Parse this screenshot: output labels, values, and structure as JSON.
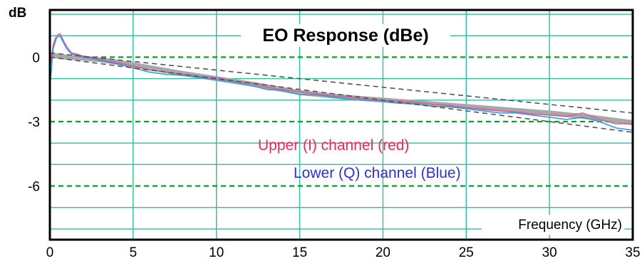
{
  "chart_data": {
    "type": "line",
    "title": "EO Response (dBe)",
    "ylabel": "dB",
    "xlabel": "Frequency (GHz)",
    "xlim": [
      0,
      35
    ],
    "ylim": [
      -8.5,
      2.2
    ],
    "x_ticks": [
      0,
      5,
      10,
      15,
      20,
      25,
      30,
      35
    ],
    "y_ticks": [
      0,
      -3,
      -6
    ],
    "y_tick_labels": [
      "0",
      "-3",
      "-6"
    ],
    "grid": true,
    "series": [
      {
        "name": "Upper (I)  channel (red)",
        "color": "#e05a9a",
        "x": [
          0,
          0.2,
          0.4,
          0.6,
          0.8,
          1.0,
          1.3,
          1.6,
          2.0,
          2.5,
          3,
          4,
          5,
          6,
          7,
          8,
          9,
          10,
          11,
          12,
          13,
          14,
          15,
          16,
          17,
          18,
          19,
          20,
          21,
          22,
          23,
          24,
          25,
          26,
          27,
          28,
          29,
          30,
          31,
          32,
          33,
          34,
          35
        ],
        "values": [
          -0.6,
          0.6,
          1.0,
          1.1,
          0.8,
          0.5,
          0.2,
          0.15,
          0.05,
          0.0,
          -0.1,
          -0.25,
          -0.4,
          -0.6,
          -0.7,
          -0.8,
          -0.9,
          -0.95,
          -1.1,
          -1.2,
          -1.4,
          -1.5,
          -1.6,
          -1.7,
          -1.8,
          -1.85,
          -1.95,
          -2.0,
          -2.05,
          -2.1,
          -2.2,
          -2.25,
          -2.35,
          -2.4,
          -2.5,
          -2.55,
          -2.65,
          -2.7,
          -2.75,
          -2.6,
          -2.9,
          -3.1,
          -3.1
        ]
      },
      {
        "name": "Lower  (Q) channel (Blue)",
        "color": "#2a9ae0",
        "x": [
          0,
          0.2,
          0.4,
          0.6,
          0.8,
          1.0,
          1.3,
          1.6,
          2.0,
          2.5,
          3,
          4,
          5,
          6,
          7,
          8,
          9,
          10,
          11,
          12,
          13,
          14,
          15,
          16,
          17,
          18,
          19,
          20,
          21,
          22,
          23,
          24,
          25,
          26,
          27,
          28,
          29,
          30,
          31,
          32,
          33,
          34,
          35
        ],
        "values": [
          -1.4,
          0.4,
          0.9,
          1.0,
          0.7,
          0.4,
          0.15,
          0.1,
          0.0,
          -0.05,
          -0.15,
          -0.3,
          -0.5,
          -0.7,
          -0.8,
          -0.85,
          -0.95,
          -1.05,
          -1.15,
          -1.3,
          -1.5,
          -1.55,
          -1.75,
          -1.75,
          -1.85,
          -1.95,
          -2.0,
          -2.05,
          -2.15,
          -2.15,
          -2.3,
          -2.3,
          -2.4,
          -2.5,
          -2.6,
          -2.6,
          -2.7,
          -2.8,
          -2.9,
          -2.8,
          -3.0,
          -3.3,
          -3.4
        ]
      },
      {
        "name": "",
        "color": "#a8a8a8",
        "x": [
          0,
          1,
          2,
          3,
          5,
          7.5,
          10,
          12.5,
          15,
          17.5,
          20,
          22.5,
          25,
          27.5,
          30,
          32.5,
          35
        ],
        "values": [
          0.1,
          0.0,
          -0.05,
          -0.12,
          -0.35,
          -0.7,
          -1.0,
          -1.3,
          -1.65,
          -1.85,
          -2.0,
          -2.15,
          -2.3,
          -2.45,
          -2.6,
          -2.8,
          -3.05
        ]
      },
      {
        "name": "",
        "color": "#555555",
        "x": [
          0,
          35
        ],
        "values": [
          0.2,
          -2.6
        ]
      },
      {
        "name": "",
        "color": "#555555",
        "x": [
          0,
          35
        ],
        "values": [
          0.0,
          -3.5
        ]
      }
    ],
    "annotations": [
      {
        "text": "Upper (I)  channel (red)",
        "color": "#e8295a"
      },
      {
        "text": "Lower  (Q) channel (Blue)",
        "color": "#2f2fd6"
      }
    ]
  }
}
